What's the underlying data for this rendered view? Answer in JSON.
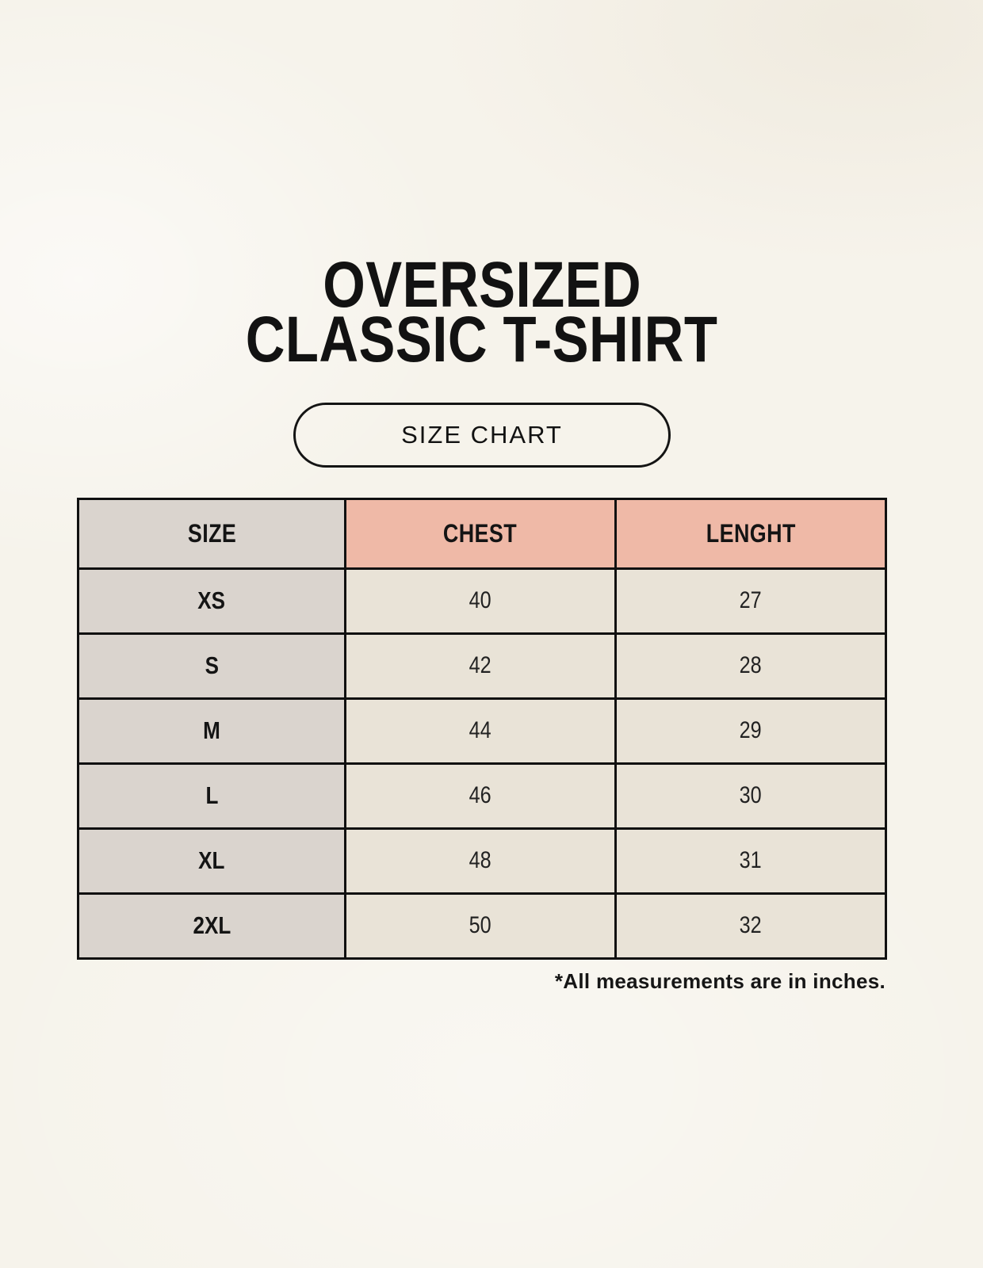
{
  "header": {
    "title_line1": "OVERSIZED",
    "title_line2": "CLASSIC T-SHIRT",
    "badge_label": "SIZE CHART"
  },
  "chart_data": {
    "type": "table",
    "title": "OVERSIZED CLASSIC T-SHIRT — SIZE CHART",
    "columns": [
      "SIZE",
      "CHEST",
      "LENGHT"
    ],
    "rows": [
      [
        "XS",
        "40",
        "27"
      ],
      [
        "S",
        "42",
        "28"
      ],
      [
        "M",
        "44",
        "29"
      ],
      [
        "L",
        "46",
        "30"
      ],
      [
        "XL",
        "48",
        "31"
      ],
      [
        "2XL",
        "50",
        "32"
      ]
    ],
    "units": "inches"
  },
  "footer": {
    "note": "*All measurements are in inches."
  },
  "colors": {
    "page_background": "#f6f3eb",
    "size_column_bg": "#dad4ce",
    "measure_header_bg": "#efb9a7",
    "value_cell_bg": "#e9e3d7",
    "table_border": "#101010",
    "text": "#141414"
  }
}
